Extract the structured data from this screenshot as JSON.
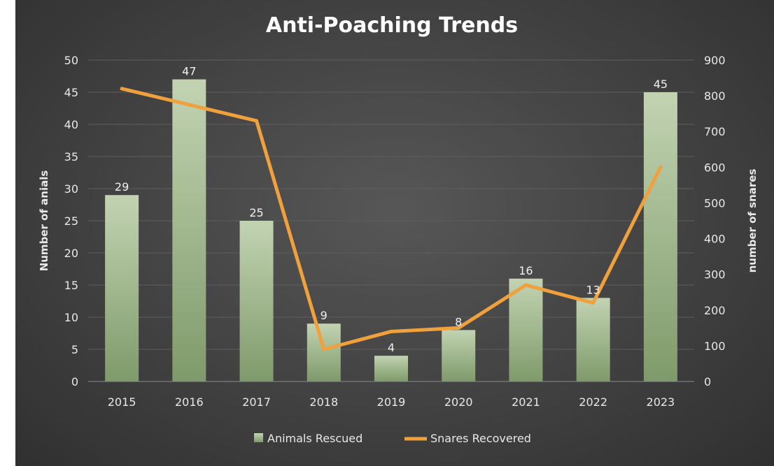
{
  "chart_data": {
    "type": "bar",
    "title": "Anti-Poaching Trends",
    "categories": [
      "2015",
      "2016",
      "2017",
      "2018",
      "2019",
      "2020",
      "2021",
      "2022",
      "2023"
    ],
    "series": [
      {
        "name": "Animals Rescued",
        "type": "bar",
        "axis": "left",
        "values": [
          29,
          47,
          25,
          9,
          4,
          8,
          16,
          13,
          45
        ],
        "color": "#a9bf96"
      },
      {
        "name": "Snares Recovered",
        "type": "line",
        "axis": "right",
        "values": [
          820,
          775,
          730,
          90,
          140,
          150,
          270,
          220,
          600
        ],
        "color": "#f0a13c"
      }
    ],
    "y_left": {
      "label": "Number of anials",
      "ylim": [
        0,
        50
      ],
      "ticks": [
        0,
        5,
        10,
        15,
        20,
        25,
        30,
        35,
        40,
        45,
        50
      ]
    },
    "y_right": {
      "label": "number of snares",
      "ylim": [
        0,
        900
      ],
      "ticks": [
        0,
        100,
        200,
        300,
        400,
        500,
        600,
        700,
        800,
        900
      ]
    },
    "xlabel": "",
    "grid": true,
    "legend_position": "bottom",
    "data_labels": [
      "29",
      "47",
      "25",
      "9",
      "4",
      "8",
      "16",
      "13",
      "45"
    ]
  }
}
